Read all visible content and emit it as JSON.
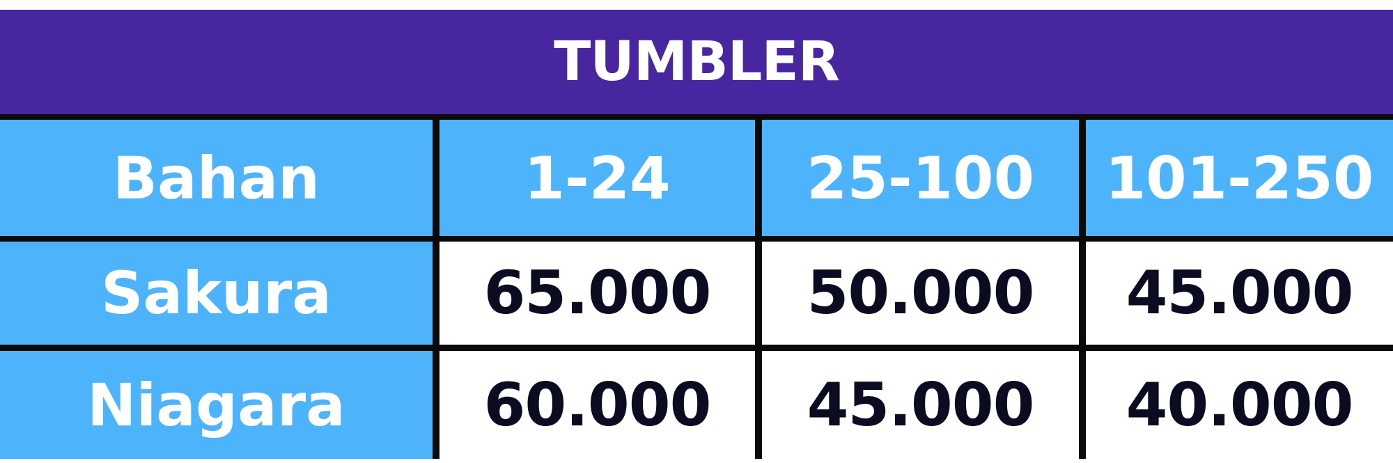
{
  "table": {
    "title": "TUMBLER",
    "header": [
      "Bahan",
      "1-24",
      "25-100",
      "101-250"
    ],
    "rows": [
      {
        "label": "Sakura",
        "values": [
          "65.000",
          "50.000",
          "45.000"
        ]
      },
      {
        "label": "Niagara",
        "values": [
          "60.000",
          "45.000",
          "40.000"
        ]
      }
    ]
  },
  "colors": {
    "title_bg": "#4826a0",
    "header_bg": "#4db3fb",
    "border": "#0a0a0a",
    "value_text": "#0b0b22"
  }
}
